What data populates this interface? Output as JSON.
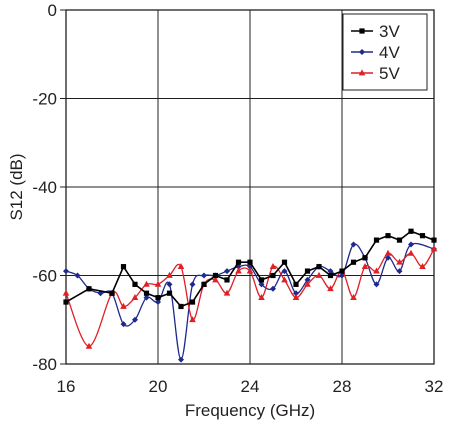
{
  "chart_data": {
    "type": "line",
    "title": "",
    "xlabel": "Frequency (GHz)",
    "ylabel": "S12 (dB)",
    "xlim": [
      16,
      32
    ],
    "ylim": [
      -80,
      0
    ],
    "x_ticks": [
      16,
      20,
      24,
      28,
      32
    ],
    "y_ticks": [
      0,
      -20,
      -40,
      -60,
      -80
    ],
    "grid": true,
    "legend_position": "top-right",
    "series": [
      {
        "name": "3V",
        "color": "#000000",
        "marker": "square",
        "points": [
          [
            16,
            -66
          ],
          [
            17,
            -63
          ],
          [
            18,
            -64
          ],
          [
            18.5,
            -58
          ],
          [
            19,
            -62
          ],
          [
            19.5,
            -64
          ],
          [
            20,
            -65
          ],
          [
            20.5,
            -64
          ],
          [
            21,
            -67
          ],
          [
            21.5,
            -66
          ],
          [
            22,
            -62
          ],
          [
            22.5,
            -60
          ],
          [
            23,
            -61
          ],
          [
            23.5,
            -57
          ],
          [
            24,
            -57
          ],
          [
            24.5,
            -61
          ],
          [
            25,
            -60
          ],
          [
            25.5,
            -57
          ],
          [
            26,
            -62
          ],
          [
            26.5,
            -59
          ],
          [
            27,
            -58
          ],
          [
            27.5,
            -60
          ],
          [
            28,
            -59
          ],
          [
            28.5,
            -57
          ],
          [
            29,
            -56
          ],
          [
            29.5,
            -52
          ],
          [
            30,
            -51
          ],
          [
            30.5,
            -52
          ],
          [
            31,
            -50
          ],
          [
            31.5,
            -51
          ],
          [
            32,
            -52
          ]
        ]
      },
      {
        "name": "4V",
        "color": "#1f2a8c",
        "marker": "diamond",
        "points": [
          [
            16,
            -59
          ],
          [
            16.5,
            -60
          ],
          [
            17,
            -63
          ],
          [
            17.5,
            -64
          ],
          [
            18,
            -64
          ],
          [
            18.5,
            -71
          ],
          [
            19,
            -70
          ],
          [
            19.5,
            -65
          ],
          [
            20,
            -66
          ],
          [
            20.5,
            -62
          ],
          [
            21,
            -79
          ],
          [
            21.5,
            -62
          ],
          [
            22,
            -60
          ],
          [
            22.5,
            -60
          ],
          [
            23,
            -59
          ],
          [
            23.5,
            -58
          ],
          [
            24,
            -58
          ],
          [
            24.5,
            -62
          ],
          [
            25,
            -63
          ],
          [
            25.5,
            -59
          ],
          [
            26,
            -64
          ],
          [
            26.5,
            -61
          ],
          [
            27,
            -58
          ],
          [
            27.5,
            -59
          ],
          [
            28,
            -60
          ],
          [
            28.5,
            -53
          ],
          [
            29,
            -56
          ],
          [
            29.5,
            -62
          ],
          [
            30,
            -56
          ],
          [
            30.5,
            -59
          ],
          [
            31,
            -53
          ],
          [
            32,
            -54
          ]
        ]
      },
      {
        "name": "5V",
        "color": "#e01f26",
        "marker": "triangle",
        "points": [
          [
            16,
            -64
          ],
          [
            17,
            -76
          ],
          [
            18,
            -64
          ],
          [
            18.5,
            -67
          ],
          [
            19,
            -65
          ],
          [
            19.5,
            -62
          ],
          [
            20,
            -62
          ],
          [
            20.5,
            -60
          ],
          [
            21,
            -58
          ],
          [
            21.5,
            -70
          ],
          [
            22,
            -62
          ],
          [
            22.5,
            -61
          ],
          [
            23,
            -64
          ],
          [
            23.5,
            -59
          ],
          [
            24,
            -59
          ],
          [
            24.5,
            -65
          ],
          [
            25,
            -58
          ],
          [
            25.5,
            -61
          ],
          [
            26,
            -65
          ],
          [
            26.5,
            -62
          ],
          [
            27,
            -60
          ],
          [
            27.5,
            -63
          ],
          [
            28,
            -59
          ],
          [
            28.5,
            -65
          ],
          [
            29,
            -58
          ],
          [
            29.5,
            -59
          ],
          [
            30,
            -55
          ],
          [
            30.5,
            -57
          ],
          [
            31,
            -55
          ],
          [
            31.5,
            -58
          ],
          [
            32,
            -54
          ]
        ]
      }
    ]
  }
}
